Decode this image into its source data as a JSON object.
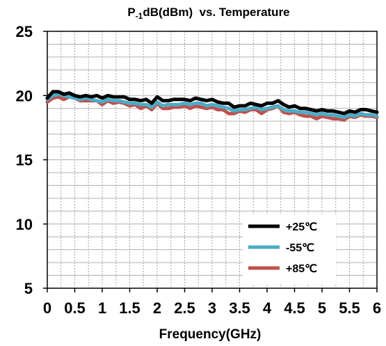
{
  "chart_data": {
    "type": "line",
    "title_main": "P",
    "title_sub": "-1",
    "title_rest": "dB(dBm)  vs. Temperature",
    "xlabel": "Frequency(GHz)",
    "ylabel": "",
    "xlim": [
      0,
      6
    ],
    "ylim": [
      5,
      25
    ],
    "x_ticks": [
      "0",
      "0.5",
      "1",
      "1.5",
      "2",
      "2.5",
      "3",
      "3.5",
      "4",
      "4.5",
      "5",
      "5.5",
      "6"
    ],
    "y_ticks": [
      "5",
      "10",
      "15",
      "20",
      "25"
    ],
    "grid": true,
    "legend_position": "bottom-right",
    "x": [
      0,
      0.1,
      0.2,
      0.3,
      0.4,
      0.5,
      0.6,
      0.7,
      0.8,
      0.9,
      1.0,
      1.1,
      1.2,
      1.3,
      1.4,
      1.5,
      1.6,
      1.7,
      1.8,
      1.9,
      2.0,
      2.1,
      2.2,
      2.3,
      2.4,
      2.5,
      2.6,
      2.7,
      2.8,
      2.9,
      3.0,
      3.1,
      3.2,
      3.3,
      3.4,
      3.5,
      3.6,
      3.7,
      3.8,
      3.9,
      4.0,
      4.1,
      4.2,
      4.3,
      4.4,
      4.5,
      4.6,
      4.7,
      4.8,
      4.9,
      5.0,
      5.1,
      5.2,
      5.3,
      5.4,
      5.5,
      5.6,
      5.7,
      5.8,
      5.9,
      6.0
    ],
    "series": [
      {
        "name": "+25℃",
        "color": "#000000",
        "values": [
          19.8,
          20.3,
          20.3,
          20.1,
          20.2,
          20.0,
          19.9,
          20.0,
          19.9,
          20.0,
          19.8,
          20.0,
          19.9,
          19.9,
          19.9,
          19.7,
          19.7,
          19.6,
          19.7,
          19.4,
          19.9,
          19.6,
          19.6,
          19.7,
          19.7,
          19.7,
          19.6,
          19.8,
          19.7,
          19.6,
          19.7,
          19.5,
          19.4,
          19.4,
          19.1,
          19.2,
          19.2,
          19.4,
          19.3,
          19.2,
          19.4,
          19.4,
          19.6,
          19.3,
          19.1,
          19.2,
          19.0,
          19.0,
          18.9,
          18.8,
          18.9,
          18.8,
          18.8,
          18.7,
          18.6,
          18.8,
          18.7,
          18.9,
          18.9,
          18.8,
          18.7
        ]
      },
      {
        "name": "-55℃",
        "color": "#4bacc6",
        "values": [
          19.7,
          20.0,
          20.1,
          20.0,
          19.9,
          19.8,
          19.7,
          19.8,
          19.7,
          19.6,
          19.5,
          19.7,
          19.6,
          19.6,
          19.5,
          19.4,
          19.4,
          19.3,
          19.3,
          19.1,
          19.5,
          19.2,
          19.3,
          19.3,
          19.3,
          19.4,
          19.3,
          19.4,
          19.4,
          19.2,
          19.3,
          19.2,
          19.1,
          19.0,
          18.8,
          18.9,
          18.9,
          19.0,
          19.1,
          18.9,
          19.0,
          19.1,
          19.2,
          18.9,
          18.8,
          18.8,
          18.7,
          18.7,
          18.6,
          18.5,
          18.6,
          18.5,
          18.5,
          18.4,
          18.3,
          18.5,
          18.4,
          18.6,
          18.5,
          18.5,
          18.4
        ]
      },
      {
        "name": "+85℃",
        "color": "#c0504d",
        "values": [
          19.5,
          19.8,
          19.9,
          19.7,
          19.9,
          19.8,
          19.6,
          19.6,
          19.6,
          19.6,
          19.3,
          19.6,
          19.4,
          19.5,
          19.4,
          19.2,
          19.3,
          19.0,
          19.2,
          18.9,
          19.4,
          19.0,
          19.0,
          19.1,
          19.1,
          19.2,
          19.0,
          19.2,
          19.1,
          19.0,
          19.1,
          18.9,
          18.9,
          18.6,
          18.6,
          18.8,
          18.7,
          18.9,
          18.9,
          18.6,
          18.9,
          19.0,
          19.2,
          18.7,
          18.6,
          18.7,
          18.5,
          18.4,
          18.4,
          18.2,
          18.4,
          18.3,
          18.2,
          18.2,
          18.1,
          18.4,
          18.3,
          18.5,
          18.4,
          18.4,
          18.3
        ]
      }
    ]
  }
}
